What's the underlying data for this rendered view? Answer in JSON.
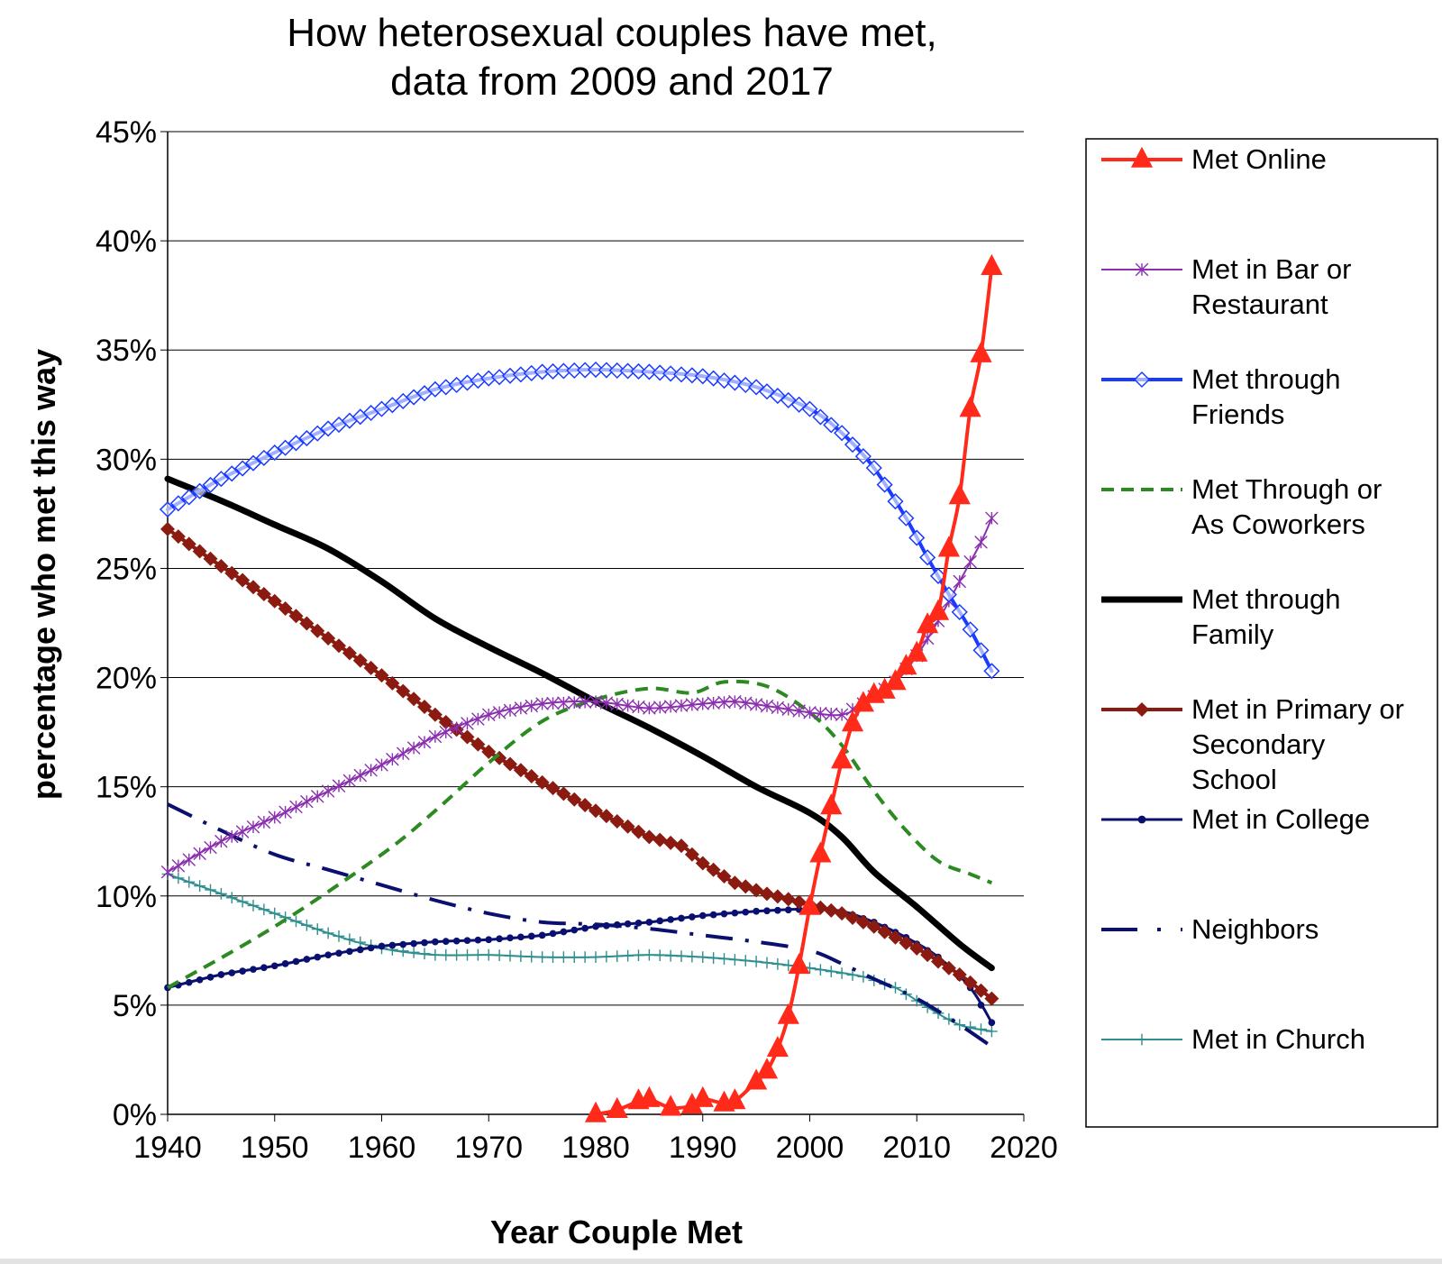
{
  "chart_data": {
    "type": "line",
    "title": [
      "How heterosexual couples have met,",
      "data from 2009 and 2017"
    ],
    "xlabel": "Year Couple Met",
    "ylabel": "percentage who met this way",
    "xlim": [
      1940,
      2020
    ],
    "ylim": [
      0,
      45
    ],
    "x_ticks": [
      "1940",
      "1950",
      "1960",
      "1970",
      "1980",
      "1990",
      "2000",
      "2010",
      "2020"
    ],
    "y_ticks": [
      "0%",
      "5%",
      "10%",
      "15%",
      "20%",
      "25%",
      "30%",
      "35%",
      "40%",
      "45%"
    ],
    "grid": "horizontal",
    "legend_position": "right",
    "series": [
      {
        "name": "Met Online",
        "legend_lines": [
          "Met Online"
        ],
        "color": "#ff2a1a",
        "marker": "triangle",
        "style": "solid",
        "width": 4,
        "points": [
          [
            1980,
            0
          ],
          [
            1982,
            0.2
          ],
          [
            1984,
            0.6
          ],
          [
            1985,
            0.7
          ],
          [
            1987,
            0.3
          ],
          [
            1989,
            0.4
          ],
          [
            1990,
            0.7
          ],
          [
            1992,
            0.5
          ],
          [
            1993,
            0.6
          ],
          [
            1995,
            1.5
          ],
          [
            1996,
            2.0
          ],
          [
            1997,
            3.0
          ],
          [
            1998,
            4.5
          ],
          [
            1999,
            6.8
          ],
          [
            2000,
            9.5
          ],
          [
            2001,
            11.9
          ],
          [
            2002,
            14.1
          ],
          [
            2003,
            16.2
          ],
          [
            2004,
            17.9
          ],
          [
            2005,
            18.8
          ],
          [
            2006,
            19.2
          ],
          [
            2007,
            19.4
          ],
          [
            2008,
            19.8
          ],
          [
            2009,
            20.5
          ],
          [
            2010,
            21.1
          ],
          [
            2011,
            22.4
          ],
          [
            2012,
            23.0
          ],
          [
            2013,
            25.9
          ],
          [
            2014,
            28.3
          ],
          [
            2015,
            32.3
          ],
          [
            2016,
            34.8
          ],
          [
            2017,
            38.8
          ]
        ]
      },
      {
        "name": "Met in Bar or Restaurant",
        "legend_lines": [
          "Met in Bar or",
          "Restaurant"
        ],
        "color": "#8b2fb0",
        "marker": "asterisk",
        "style": "solid",
        "width": 2,
        "points": [
          [
            1940,
            11.1
          ],
          [
            1945,
            12.5
          ],
          [
            1950,
            13.6
          ],
          [
            1955,
            14.8
          ],
          [
            1960,
            16.0
          ],
          [
            1965,
            17.3
          ],
          [
            1970,
            18.3
          ],
          [
            1975,
            18.8
          ],
          [
            1980,
            18.9
          ],
          [
            1985,
            18.6
          ],
          [
            1990,
            18.8
          ],
          [
            1993,
            18.9
          ],
          [
            1996,
            18.7
          ],
          [
            2000,
            18.4
          ],
          [
            2003,
            18.3
          ],
          [
            2005,
            18.8
          ],
          [
            2008,
            19.8
          ],
          [
            2010,
            21.0
          ],
          [
            2012,
            22.6
          ],
          [
            2014,
            24.4
          ],
          [
            2016,
            26.2
          ],
          [
            2017,
            27.3
          ]
        ]
      },
      {
        "name": "Met through Friends",
        "legend_lines": [
          "Met through",
          "Friends"
        ],
        "color": "#1a3bff",
        "marker": "diamond-open",
        "style": "solid",
        "width": 4,
        "points": [
          [
            1940,
            27.7
          ],
          [
            1945,
            29.1
          ],
          [
            1950,
            30.3
          ],
          [
            1955,
            31.4
          ],
          [
            1960,
            32.3
          ],
          [
            1965,
            33.2
          ],
          [
            1970,
            33.7
          ],
          [
            1975,
            34.0
          ],
          [
            1980,
            34.1
          ],
          [
            1985,
            34.0
          ],
          [
            1990,
            33.8
          ],
          [
            1995,
            33.3
          ],
          [
            2000,
            32.3
          ],
          [
            2003,
            31.2
          ],
          [
            2006,
            29.6
          ],
          [
            2009,
            27.3
          ],
          [
            2011,
            25.5
          ],
          [
            2013,
            23.8
          ],
          [
            2015,
            22.2
          ],
          [
            2017,
            20.3
          ]
        ]
      },
      {
        "name": "Met Through or As Coworkers",
        "legend_lines": [
          "Met Through or",
          "As Coworkers"
        ],
        "color": "#2d8a22",
        "marker": "none",
        "style": "dashed",
        "width": 4,
        "points": [
          [
            1940,
            5.8
          ],
          [
            1950,
            8.6
          ],
          [
            1960,
            11.9
          ],
          [
            1965,
            13.9
          ],
          [
            1970,
            16.1
          ],
          [
            1975,
            18.0
          ],
          [
            1980,
            19.0
          ],
          [
            1985,
            19.5
          ],
          [
            1989,
            19.3
          ],
          [
            1992,
            19.8
          ],
          [
            1996,
            19.6
          ],
          [
            2000,
            18.4
          ],
          [
            2003,
            16.9
          ],
          [
            2006,
            14.8
          ],
          [
            2009,
            13.0
          ],
          [
            2012,
            11.6
          ],
          [
            2015,
            11.0
          ],
          [
            2017,
            10.6
          ]
        ]
      },
      {
        "name": "Met through Family",
        "legend_lines": [
          "Met through",
          "Family"
        ],
        "color": "#000000",
        "marker": "none",
        "style": "solid",
        "width": 7,
        "points": [
          [
            1940,
            29.1
          ],
          [
            1945,
            28.1
          ],
          [
            1950,
            27.0
          ],
          [
            1955,
            25.9
          ],
          [
            1960,
            24.4
          ],
          [
            1965,
            22.7
          ],
          [
            1970,
            21.4
          ],
          [
            1975,
            20.2
          ],
          [
            1980,
            18.9
          ],
          [
            1985,
            17.7
          ],
          [
            1990,
            16.4
          ],
          [
            1995,
            15.0
          ],
          [
            2000,
            13.8
          ],
          [
            2003,
            12.7
          ],
          [
            2006,
            11.1
          ],
          [
            2010,
            9.5
          ],
          [
            2014,
            7.8
          ],
          [
            2017,
            6.7
          ]
        ]
      },
      {
        "name": "Met in Primary or Secondary School",
        "legend_lines": [
          "Met in Primary or",
          "Secondary",
          "School"
        ],
        "color": "#8b1a10",
        "marker": "diamond",
        "style": "solid",
        "width": 4,
        "points": [
          [
            1940,
            26.8
          ],
          [
            1945,
            25.1
          ],
          [
            1950,
            23.5
          ],
          [
            1955,
            21.8
          ],
          [
            1960,
            20.1
          ],
          [
            1965,
            18.3
          ],
          [
            1970,
            16.6
          ],
          [
            1975,
            15.2
          ],
          [
            1980,
            13.9
          ],
          [
            1985,
            12.7
          ],
          [
            1988,
            12.3
          ],
          [
            1990,
            11.5
          ],
          [
            1993,
            10.6
          ],
          [
            1996,
            10.1
          ],
          [
            2000,
            9.6
          ],
          [
            2003,
            9.2
          ],
          [
            2006,
            8.6
          ],
          [
            2010,
            7.6
          ],
          [
            2014,
            6.4
          ],
          [
            2017,
            5.3
          ]
        ]
      },
      {
        "name": "Met in College",
        "legend_lines": [
          "Met in College"
        ],
        "color": "#0a1070",
        "marker": "dot",
        "style": "solid",
        "width": 3,
        "points": [
          [
            1940,
            5.8
          ],
          [
            1945,
            6.4
          ],
          [
            1950,
            6.8
          ],
          [
            1955,
            7.3
          ],
          [
            1960,
            7.7
          ],
          [
            1965,
            7.9
          ],
          [
            1970,
            8.0
          ],
          [
            1975,
            8.2
          ],
          [
            1980,
            8.6
          ],
          [
            1985,
            8.8
          ],
          [
            1990,
            9.1
          ],
          [
            1995,
            9.3
          ],
          [
            2000,
            9.4
          ],
          [
            2003,
            9.3
          ],
          [
            2006,
            8.8
          ],
          [
            2009,
            8.1
          ],
          [
            2012,
            7.2
          ],
          [
            2015,
            5.8
          ],
          [
            2017,
            4.2
          ]
        ]
      },
      {
        "name": "Neighbors",
        "legend_lines": [
          "Neighbors"
        ],
        "color": "#0a1070",
        "marker": "none",
        "style": "dashdot",
        "width": 4,
        "points": [
          [
            1940,
            14.2
          ],
          [
            1945,
            13.0
          ],
          [
            1950,
            11.9
          ],
          [
            1955,
            11.2
          ],
          [
            1960,
            10.5
          ],
          [
            1965,
            9.8
          ],
          [
            1970,
            9.2
          ],
          [
            1975,
            8.8
          ],
          [
            1980,
            8.7
          ],
          [
            1985,
            8.5
          ],
          [
            1990,
            8.2
          ],
          [
            1995,
            7.9
          ],
          [
            2000,
            7.5
          ],
          [
            2003,
            6.9
          ],
          [
            2006,
            6.2
          ],
          [
            2010,
            5.3
          ],
          [
            2014,
            4.1
          ],
          [
            2017,
            3.1
          ]
        ]
      },
      {
        "name": "Met in Church",
        "legend_lines": [
          "Met in Church"
        ],
        "color": "#2f8f8f",
        "marker": "plus",
        "style": "solid",
        "width": 2,
        "points": [
          [
            1940,
            11.0
          ],
          [
            1945,
            10.1
          ],
          [
            1950,
            9.2
          ],
          [
            1955,
            8.3
          ],
          [
            1960,
            7.6
          ],
          [
            1965,
            7.3
          ],
          [
            1970,
            7.3
          ],
          [
            1975,
            7.2
          ],
          [
            1980,
            7.2
          ],
          [
            1985,
            7.3
          ],
          [
            1990,
            7.2
          ],
          [
            1995,
            7.0
          ],
          [
            2000,
            6.7
          ],
          [
            2005,
            6.3
          ],
          [
            2008,
            5.8
          ],
          [
            2011,
            4.9
          ],
          [
            2014,
            4.1
          ],
          [
            2017,
            3.8
          ]
        ]
      }
    ]
  }
}
